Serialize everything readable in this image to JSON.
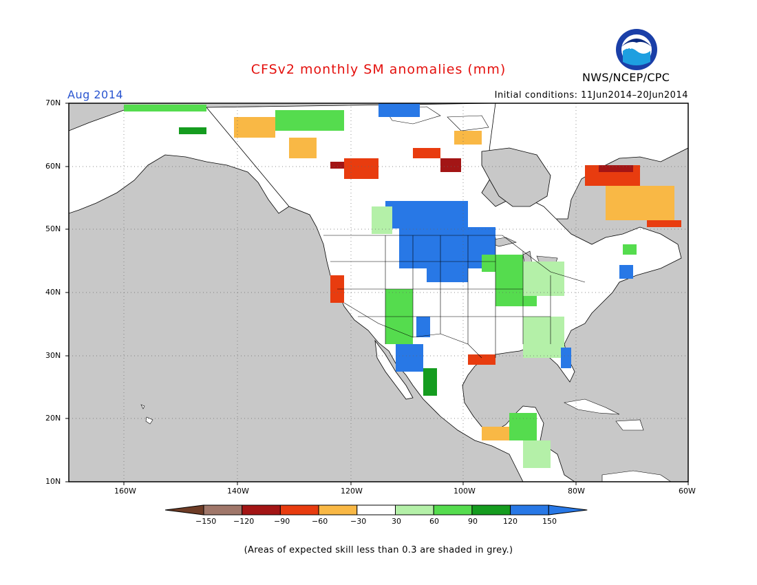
{
  "header": {
    "title": "CFSv2 monthly SM anomalies (mm)",
    "period": "Aug 2014",
    "agency": "NWS/NCEP/CPC",
    "logo_text": "NOAA",
    "initial_conditions": "Initial conditions: 11Jun2014–20Jun2014"
  },
  "map": {
    "lat_labels": [
      "70N",
      "60N",
      "50N",
      "40N",
      "30N",
      "20N",
      "10N"
    ],
    "lon_labels": [
      "160W",
      "140W",
      "120W",
      "100W",
      "80W",
      "60W"
    ],
    "ocean_color": "#c8c8c8",
    "land_color": "#ffffff"
  },
  "legend": {
    "tick_labels": [
      "−150",
      "−120",
      "−90",
      "−60",
      "−30",
      "30",
      "60",
      "90",
      "120",
      "150"
    ],
    "colors": [
      "#6e3c26",
      "#a0776a",
      "#a31515",
      "#e83c0f",
      "#f9b845",
      "#ffffff",
      "#b4f0a8",
      "#55dc4e",
      "#159c1f",
      "#2878e6",
      "#2878e6"
    ]
  },
  "footer": {
    "note": "(Areas of expected skill less than 0.3 are shaded in grey.)"
  }
}
